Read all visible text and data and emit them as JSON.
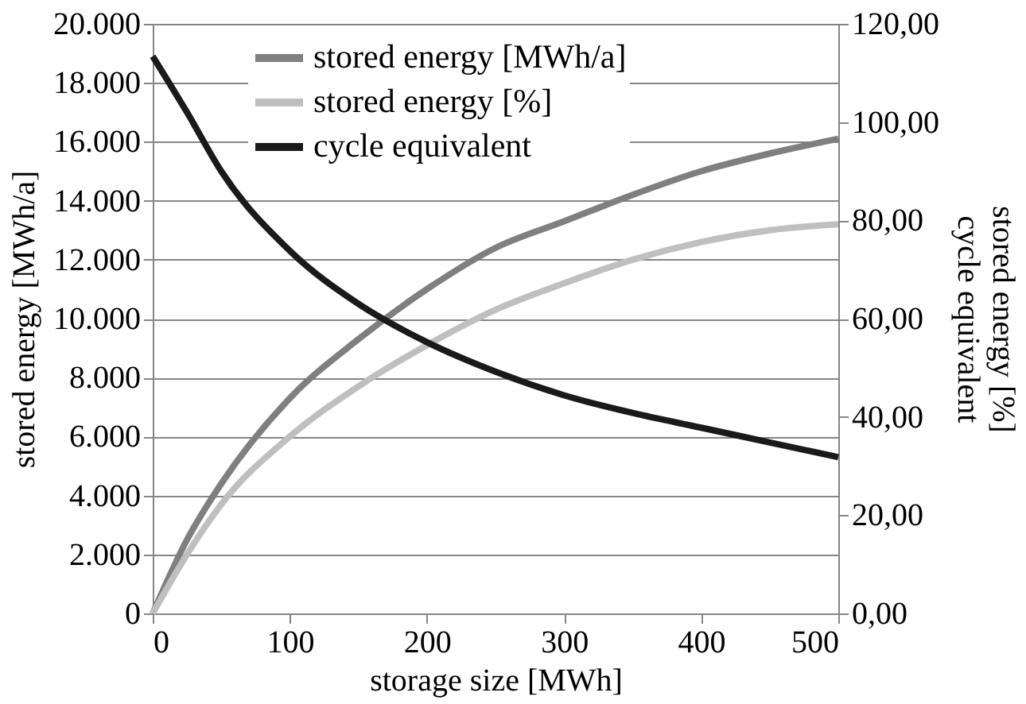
{
  "chart_data": {
    "type": "line",
    "xlabel": "storage size [MWh]",
    "ylabel": "stored energy [MWh/a]",
    "y2label": "stored energy [%]\ncycle equivalent",
    "x": [
      0,
      25,
      50,
      100,
      150,
      200,
      250,
      300,
      350,
      400,
      450,
      500
    ],
    "series": [
      {
        "name": "stored energy [MWh/a]",
        "color": "#7f7f7f",
        "values": [
          0,
          2500,
          4400,
          7300,
          9300,
          11000,
          12400,
          13300,
          14200,
          15000,
          15600,
          16100
        ]
      },
      {
        "name": "stored energy [%]",
        "color": "#bfbfbf",
        "axis": "y2",
        "values": [
          0,
          12,
          22.2,
          36,
          46.2,
          54.6,
          61.8,
          67.2,
          72,
          75.6,
          78,
          79.2
        ]
      },
      {
        "name": "cycle equivalent",
        "color": "#1a1a1a",
        "axis": "y2",
        "values": [
          113.4,
          102,
          90,
          73.8,
          63,
          55.2,
          49.2,
          44.4,
          40.8,
          37.8,
          34.8,
          31.8
        ]
      }
    ],
    "xlim": [
      0,
      500
    ],
    "xticks": [
      0,
      100,
      200,
      300,
      400,
      500
    ],
    "ylim": [
      0,
      20000
    ],
    "yticks": [
      0,
      {
        "value": 2000,
        "label": "2.000"
      },
      {
        "value": 4000,
        "label": "4.000"
      },
      {
        "value": 6000,
        "label": "6.000"
      },
      {
        "value": 8000,
        "label": "8.000"
      },
      {
        "value": 10000,
        "label": "10.000"
      },
      {
        "value": 12000,
        "label": "12.000"
      },
      {
        "value": 14000,
        "label": "14.000"
      },
      {
        "value": 16000,
        "label": "16.000"
      },
      {
        "value": 18000,
        "label": "18.000"
      },
      {
        "value": 20000,
        "label": "20.000"
      }
    ],
    "y2lim": [
      0,
      120
    ],
    "y2ticks": [
      {
        "value": 0,
        "label": "0,00"
      },
      {
        "value": 20,
        "label": "20,00"
      },
      {
        "value": 40,
        "label": "40,00"
      },
      {
        "value": 60,
        "label": "60,00"
      },
      {
        "value": 80,
        "label": "80,00"
      },
      {
        "value": 100,
        "label": "100,00"
      },
      {
        "value": 120,
        "label": "120,00"
      }
    ],
    "grid": "y",
    "legend": "top left",
    "marker": "none",
    "line_style": "solid"
  }
}
